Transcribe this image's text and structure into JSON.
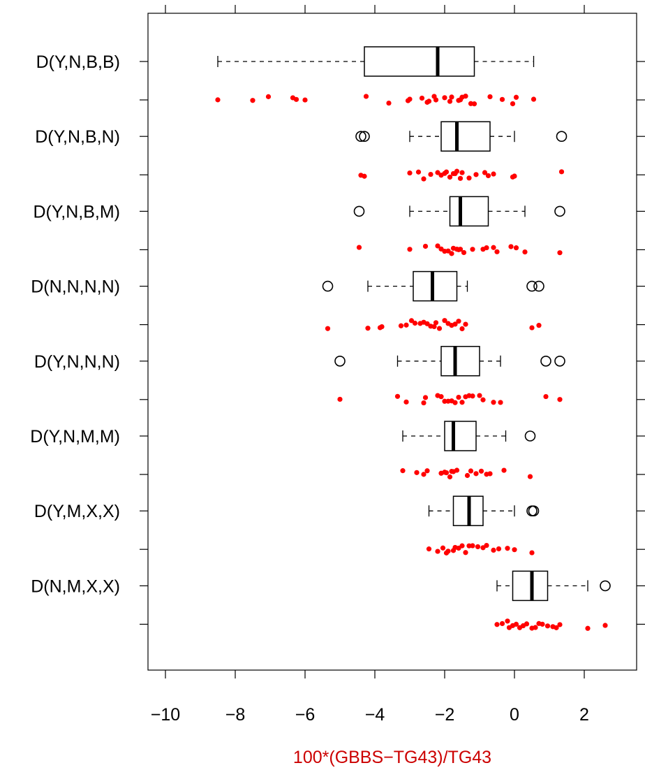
{
  "chart_data": {
    "type": "boxplot",
    "xlabel": "100*(GBBS−TG43)/TG43",
    "xlim": [
      -10.5,
      3.5
    ],
    "xticks": [
      -10,
      -8,
      -6,
      -4,
      -2,
      0,
      2
    ],
    "xtick_labels": [
      "−10",
      "−8",
      "−6",
      "−4",
      "−2",
      "0",
      "2"
    ],
    "colors": {
      "box": "#000000",
      "points": "#ff0000",
      "xlabel": "#cc0000"
    },
    "categories": [
      "D(Y,N,B,B)",
      "D(Y,N,B,N)",
      "D(Y,N,B,M)",
      "D(N,N,N,N)",
      "D(Y,N,N,N)",
      "D(Y,N,M,M)",
      "D(Y,M,X,X)",
      "D(N,M,X,X)"
    ],
    "boxes": [
      {
        "label": "D(Y,N,B,B)",
        "whisker_low": -8.5,
        "q1": -4.3,
        "median": -2.2,
        "q3": -1.15,
        "whisker_high": 0.55,
        "outliers": []
      },
      {
        "label": "D(Y,N,B,N)",
        "whisker_low": -3.0,
        "q1": -2.1,
        "median": -1.65,
        "q3": -0.7,
        "whisker_high": 0.0,
        "outliers": [
          -4.4,
          -4.3,
          1.35
        ]
      },
      {
        "label": "D(Y,N,B,M)",
        "whisker_low": -3.0,
        "q1": -1.85,
        "median": -1.55,
        "q3": -0.75,
        "whisker_high": 0.3,
        "outliers": [
          -4.45,
          1.3
        ]
      },
      {
        "label": "D(N,N,N,N)",
        "whisker_low": -4.2,
        "q1": -2.9,
        "median": -2.35,
        "q3": -1.65,
        "whisker_high": -1.35,
        "outliers": [
          -5.35,
          0.5,
          0.7
        ]
      },
      {
        "label": "D(Y,N,N,N)",
        "whisker_low": -3.35,
        "q1": -2.1,
        "median": -1.7,
        "q3": -1.0,
        "whisker_high": -0.4,
        "outliers": [
          -5.0,
          0.9,
          1.3
        ]
      },
      {
        "label": "D(Y,N,M,M)",
        "whisker_low": -3.2,
        "q1": -2.0,
        "median": -1.75,
        "q3": -1.1,
        "whisker_high": -0.25,
        "outliers": [
          0.45
        ]
      },
      {
        "label": "D(Y,M,X,X)",
        "whisker_low": -2.45,
        "q1": -1.75,
        "median": -1.3,
        "q3": -0.9,
        "whisker_high": 0.0,
        "outliers": [
          0.5,
          0.55
        ]
      },
      {
        "label": "D(N,M,X,X)",
        "whisker_low": -0.5,
        "q1": -0.05,
        "median": 0.5,
        "q3": 0.95,
        "whisker_high": 2.1,
        "outliers": [
          2.6
        ]
      }
    ],
    "strip_points": [
      [
        -8.5,
        -7.5,
        -7.05,
        -6.35,
        -6.25,
        -6.0,
        -4.25,
        -3.6,
        -3.05,
        -3.0,
        -2.65,
        -2.5,
        -2.45,
        -2.3,
        -2.25,
        -2.0,
        -1.85,
        -1.8,
        -1.6,
        -1.55,
        -1.5,
        -1.4,
        -1.25,
        -1.15,
        -0.7,
        -0.35,
        -0.05,
        0.05,
        0.55
      ],
      [
        -4.4,
        -4.3,
        -3.0,
        -2.75,
        -2.6,
        -2.4,
        -2.2,
        -2.1,
        -2.0,
        -1.95,
        -1.85,
        -1.75,
        -1.7,
        -1.65,
        -1.55,
        -1.5,
        -1.3,
        -1.1,
        -0.85,
        -0.75,
        -0.6,
        -0.05,
        0.0,
        1.35
      ],
      [
        -4.45,
        -3.0,
        -2.55,
        -2.2,
        -2.1,
        -2.0,
        -1.9,
        -1.8,
        -1.75,
        -1.65,
        -1.6,
        -1.55,
        -1.45,
        -1.2,
        -0.9,
        -0.8,
        -0.6,
        -0.5,
        -0.1,
        0.05,
        0.3,
        1.3
      ],
      [
        -5.35,
        -4.2,
        -3.85,
        -3.8,
        -3.25,
        -3.1,
        -2.95,
        -2.85,
        -2.7,
        -2.6,
        -2.5,
        -2.4,
        -2.3,
        -2.25,
        -2.15,
        -2.0,
        -1.9,
        -1.8,
        -1.7,
        -1.6,
        -1.5,
        -1.4,
        0.5,
        0.7
      ],
      [
        -5.0,
        -3.35,
        -3.1,
        -2.6,
        -2.55,
        -2.2,
        -2.1,
        -2.0,
        -1.9,
        -1.8,
        -1.7,
        -1.6,
        -1.5,
        -1.4,
        -1.3,
        -1.2,
        -1.0,
        -0.9,
        -0.6,
        -0.4,
        0.9,
        1.3
      ],
      [
        -3.2,
        -2.8,
        -2.6,
        -2.5,
        -2.1,
        -2.0,
        -1.95,
        -1.85,
        -1.8,
        -1.75,
        -1.65,
        -1.35,
        -1.25,
        -1.1,
        -0.95,
        -0.8,
        -0.7,
        -0.3,
        0.45
      ],
      [
        -2.45,
        -2.2,
        -2.05,
        -1.95,
        -1.9,
        -1.75,
        -1.7,
        -1.6,
        -1.5,
        -1.4,
        -1.3,
        -1.2,
        -1.05,
        -0.9,
        -0.8,
        -0.6,
        -0.45,
        -0.2,
        0.0,
        0.5
      ],
      [
        -0.5,
        -0.35,
        -0.2,
        -0.15,
        -0.05,
        0.05,
        0.15,
        0.25,
        0.35,
        0.5,
        0.6,
        0.7,
        0.8,
        0.95,
        1.1,
        1.2,
        1.3,
        2.1,
        2.6
      ]
    ]
  }
}
